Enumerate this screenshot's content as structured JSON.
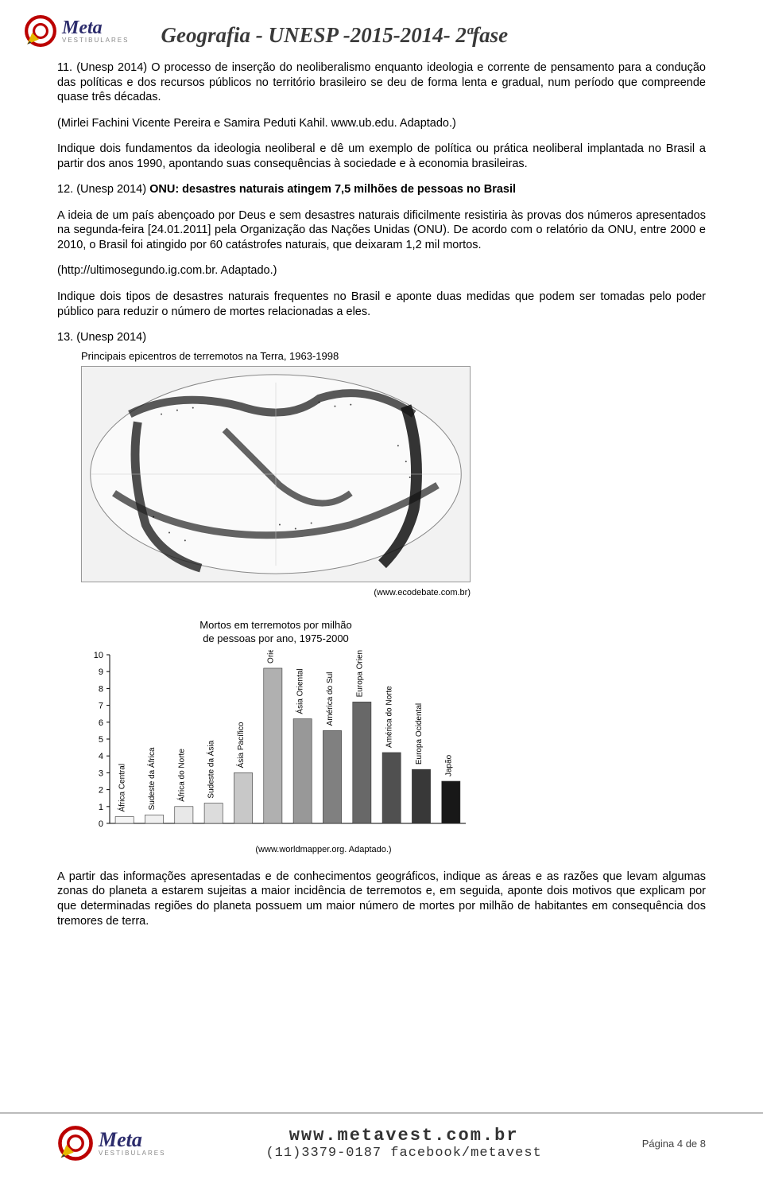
{
  "brand": {
    "name": "Meta",
    "sub": "VESTIBULARES"
  },
  "doc_title": "Geografia  - UNESP -2015-2014- 2ªfase",
  "q11": {
    "num": "11.",
    "text": "(Unesp 2014)  O processo de inserção do neoliberalismo enquanto ideologia e corrente de pensamento para a condução das políticas e dos recursos públicos no território brasileiro se deu de forma lenta e gradual, num período que compreende quase três décadas.",
    "source": "(Mirlei Fachini Vicente Pereira e Samira Peduti Kahil. www.ub.edu. Adaptado.)",
    "prompt": "Indique dois fundamentos da ideologia neoliberal e dê um exemplo de política ou prática neoliberal implantada no Brasil a partir dos anos 1990, apontando suas consequências à sociedade e à economia brasileiras."
  },
  "q12": {
    "num": "12.",
    "lead": "(Unesp 2014)  ",
    "headline": "ONU: desastres naturais atingem 7,5 milhões de pessoas no Brasil",
    "text": "A ideia de um país abençoado por Deus e sem desastres naturais dificilmente resistiria às provas dos números apresentados na segunda-feira [24.01.2011] pela Organização das Nações Unidas (ONU). De acordo com o relatório da ONU, entre 2000 e 2010, o Brasil foi atingido por 60 catástrofes naturais, que deixaram 1,2 mil mortos.",
    "source": "(http://ultimosegundo.ig.com.br. Adaptado.)",
    "prompt": "Indique dois tipos de desastres naturais frequentes no Brasil e aponte duas medidas que podem ser tomadas pelo poder público para reduzir o número de mortes relacionadas a eles."
  },
  "q13": {
    "num": "13.",
    "lead": "(Unesp 2014)",
    "fig1_title": "Principais epicentros de terremotos na Terra, 1963-1998",
    "fig1_credit": "(www.ecodebate.com.br)",
    "chart": {
      "type": "bar",
      "title_l1": "Mortos em terremotos por milhão",
      "title_l2": "de pessoas por ano, 1975-2000",
      "ylim": [
        0,
        10
      ],
      "ytick_step": 1,
      "categories": [
        "África Central",
        "Sudeste da África",
        "África do Norte",
        "Sudeste da Ásia",
        "Ásia Pacífico",
        "Oriente Médio",
        "Ásia Oriental",
        "América do Sul",
        "Europa Oriental",
        "América do Norte",
        "Europa Ocidental",
        "Japão"
      ],
      "values": [
        0.4,
        0.5,
        1.0,
        1.2,
        3.0,
        9.2,
        6.2,
        5.5,
        7.2,
        4.2,
        3.2,
        2.5
      ],
      "colors": [
        "#f5f5f5",
        "#f0f0f0",
        "#e8e8e8",
        "#dcdcdc",
        "#c8c8c8",
        "#b0b0b0",
        "#989898",
        "#808080",
        "#686868",
        "#505050",
        "#383838",
        "#181818"
      ],
      "credit": "(www.worldmapper.org. Adaptado.)",
      "axis_color": "#000000",
      "label_fontsize": 10
    },
    "prompt": "A partir das informações apresentadas e de conhecimentos geográficos, indique as áreas e as razões que levam algumas zonas do planeta a estarem sujeitas a maior incidência de terremotos e, em seguida, aponte dois motivos que explicam por que determinadas regiões do planeta possuem um maior número de mortes por milhão de habitantes em consequência dos tremores de terra."
  },
  "footer": {
    "url": "www.metavest.com.br",
    "contact": "(11)3379-0187 facebook/metavest",
    "page": "Página 4 de 8"
  }
}
